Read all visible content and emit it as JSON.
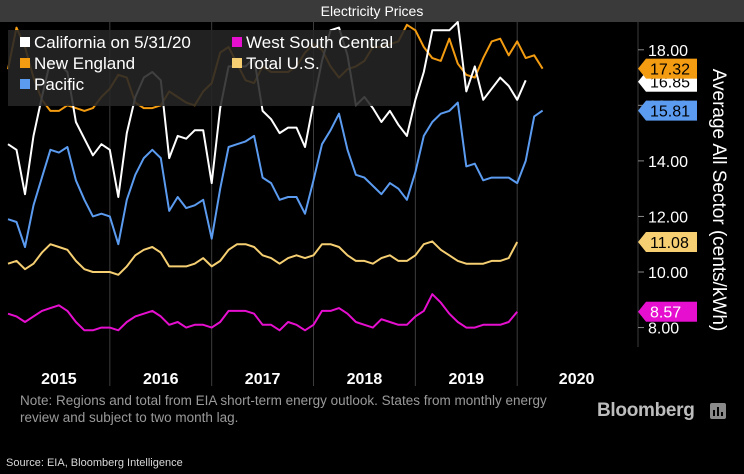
{
  "title": "Electricity Prices",
  "note": "Note: Regions and total from EIA short-term energy outlook. States from monthly energy review and subject to two month lag.",
  "brand": "Bloomberg",
  "source": "Source: EIA, Bloomberg Intelligence",
  "chart_data": {
    "type": "line",
    "ylabel": "Average All Sector (cents/kWh)",
    "ylim": [
      7.3,
      19.0
    ],
    "yticks": [
      "8.00",
      "10.00",
      "12.00",
      "14.00",
      "16.00",
      "18.00"
    ],
    "xlim": [
      0,
      74
    ],
    "year_labels": [
      "2015",
      "2016",
      "2017",
      "2018",
      "2019",
      "2020"
    ],
    "legend_position": "top-left",
    "grid": "vertical year separators",
    "series": [
      {
        "name": "California on 5/31/20",
        "color": "#ffffff",
        "end_label": "16.85",
        "values": [
          14.6,
          14.4,
          12.8,
          14.9,
          16.3,
          17.6,
          17.5,
          17.2,
          15.4,
          14.8,
          14.2,
          14.6,
          14.4,
          12.7,
          15.0,
          16.3,
          17.0,
          17.2,
          16.9,
          14.1,
          14.9,
          14.8,
          15.1,
          15.1,
          13.2,
          15.9,
          17.4,
          17.4,
          17.4,
          17.7,
          15.8,
          15.5,
          15.0,
          15.2,
          15.2,
          14.5,
          16.1,
          17.6,
          18.7,
          18.8,
          17.8,
          16.0,
          16.3,
          15.9,
          15.4,
          15.8,
          15.3,
          14.9,
          16.2,
          17.2,
          18.7,
          18.7,
          18.7,
          19.0,
          16.5,
          17.4,
          16.2,
          16.6,
          17.0,
          16.7,
          16.2,
          16.9
        ]
      },
      {
        "name": "New England",
        "color": "#f39c12",
        "end_label": "17.32",
        "values": [
          17.3,
          18.8,
          18.1,
          17.0,
          16.2,
          15.8,
          15.8,
          16.0,
          15.9,
          15.8,
          15.9,
          16.3,
          16.6,
          17.1,
          17.0,
          16.1,
          15.9,
          15.9,
          16.0,
          16.5,
          16.3,
          16.1,
          16.0,
          16.5,
          16.8,
          17.9,
          18.1,
          17.5,
          16.9,
          16.8,
          17.4,
          17.2,
          17.2,
          17.2,
          17.4,
          17.9,
          18.2,
          18.0,
          17.4,
          17.0,
          17.3,
          17.4,
          17.6,
          18.1,
          18.1,
          18.2,
          18.3,
          18.9,
          18.7,
          18.1,
          17.7,
          17.6,
          18.4,
          17.5,
          17.1,
          17.0,
          17.7,
          18.3,
          18.4,
          17.8,
          18.3,
          17.7,
          17.8,
          17.32
        ]
      },
      {
        "name": "Pacific",
        "color": "#5b9bf0",
        "end_label": "15.81",
        "values": [
          11.9,
          11.8,
          10.9,
          12.4,
          13.4,
          14.4,
          14.3,
          14.5,
          13.3,
          12.6,
          12.0,
          12.1,
          12.0,
          11.0,
          12.6,
          13.5,
          14.1,
          14.4,
          14.1,
          12.2,
          12.7,
          12.3,
          12.4,
          12.6,
          11.2,
          13.0,
          14.5,
          14.6,
          14.7,
          14.9,
          13.4,
          13.2,
          12.6,
          12.7,
          12.7,
          12.1,
          13.3,
          14.6,
          15.1,
          15.7,
          14.4,
          13.5,
          13.4,
          13.1,
          12.8,
          13.2,
          13.0,
          12.6,
          13.6,
          14.9,
          15.4,
          15.7,
          15.8,
          16.1,
          13.8,
          13.9,
          13.3,
          13.4,
          13.4,
          13.4,
          13.2,
          14.0,
          15.6,
          15.81
        ]
      },
      {
        "name": "West South Central",
        "color": "#e60fcf",
        "end_label": "8.57",
        "values": [
          8.5,
          8.4,
          8.2,
          8.4,
          8.6,
          8.7,
          8.8,
          8.6,
          8.2,
          7.9,
          7.9,
          8.0,
          8.0,
          7.9,
          8.2,
          8.4,
          8.5,
          8.6,
          8.4,
          8.1,
          8.2,
          8.0,
          8.1,
          8.1,
          8.0,
          8.2,
          8.6,
          8.6,
          8.6,
          8.5,
          8.1,
          8.1,
          7.9,
          8.2,
          8.1,
          7.9,
          8.1,
          8.6,
          8.6,
          8.7,
          8.5,
          8.2,
          8.1,
          8.0,
          8.3,
          8.2,
          8.1,
          8.1,
          8.4,
          8.6,
          9.2,
          8.9,
          8.5,
          8.2,
          8.0,
          8.0,
          8.1,
          8.1,
          8.1,
          8.2,
          8.57
        ]
      },
      {
        "name": "Total U.S.",
        "color": "#f6cf72",
        "end_label": "11.08",
        "values": [
          10.3,
          10.4,
          10.1,
          10.3,
          10.7,
          11.0,
          10.9,
          10.8,
          10.4,
          10.1,
          10.0,
          10.0,
          10.0,
          9.9,
          10.2,
          10.6,
          10.8,
          10.9,
          10.7,
          10.2,
          10.2,
          10.2,
          10.3,
          10.5,
          10.2,
          10.4,
          10.8,
          11.0,
          11.0,
          10.9,
          10.6,
          10.5,
          10.3,
          10.5,
          10.6,
          10.5,
          10.6,
          11.0,
          11.0,
          10.9,
          10.6,
          10.4,
          10.4,
          10.3,
          10.5,
          10.6,
          10.4,
          10.4,
          10.6,
          11.0,
          11.1,
          10.8,
          10.6,
          10.4,
          10.3,
          10.3,
          10.3,
          10.4,
          10.4,
          10.5,
          11.08
        ]
      }
    ]
  }
}
